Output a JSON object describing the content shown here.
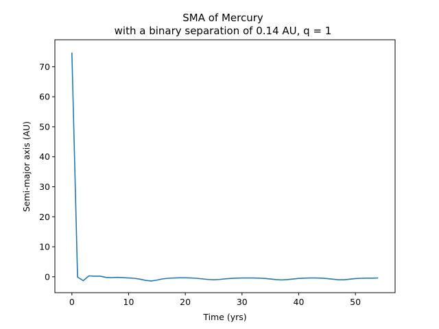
{
  "chart_data": {
    "type": "line",
    "title": "SMA of Mercury",
    "subtitle": "with a binary separation of 0.14 AU, q = 1",
    "xlabel": "Time (yrs)",
    "ylabel": "Semi-major axis (AU)",
    "xlim": [
      -3,
      57
    ],
    "ylim": [
      -5.3,
      79
    ],
    "xticks": [
      0,
      10,
      20,
      30,
      40,
      50
    ],
    "yticks": [
      0,
      10,
      20,
      30,
      40,
      50,
      60,
      70
    ],
    "grid": false,
    "line_color": "#1f77b4",
    "series": [
      {
        "x": [
          0,
          1,
          2,
          3,
          4,
          5,
          6,
          7,
          8,
          9,
          10,
          11,
          12,
          13,
          14,
          15,
          16,
          17,
          18,
          19,
          20,
          21,
          22,
          23,
          24,
          25,
          26,
          27,
          28,
          29,
          30,
          31,
          32,
          33,
          34,
          35,
          36,
          37,
          38,
          39,
          40,
          41,
          42,
          43,
          44,
          45,
          46,
          47,
          48,
          49,
          50,
          51,
          52,
          53,
          54
        ],
        "values": [
          74.7,
          -0.1,
          -1.3,
          0.3,
          0.2,
          0.2,
          -0.2,
          -0.3,
          -0.2,
          -0.3,
          -0.4,
          -0.5,
          -0.8,
          -1.2,
          -1.4,
          -1.1,
          -0.7,
          -0.5,
          -0.4,
          -0.35,
          -0.35,
          -0.4,
          -0.5,
          -0.7,
          -0.9,
          -1.0,
          -0.9,
          -0.7,
          -0.55,
          -0.45,
          -0.4,
          -0.4,
          -0.4,
          -0.45,
          -0.55,
          -0.75,
          -0.95,
          -1.05,
          -0.95,
          -0.75,
          -0.55,
          -0.45,
          -0.4,
          -0.4,
          -0.45,
          -0.6,
          -0.8,
          -1.0,
          -1.0,
          -0.8,
          -0.6,
          -0.5,
          -0.45,
          -0.45,
          -0.4
        ]
      }
    ]
  }
}
